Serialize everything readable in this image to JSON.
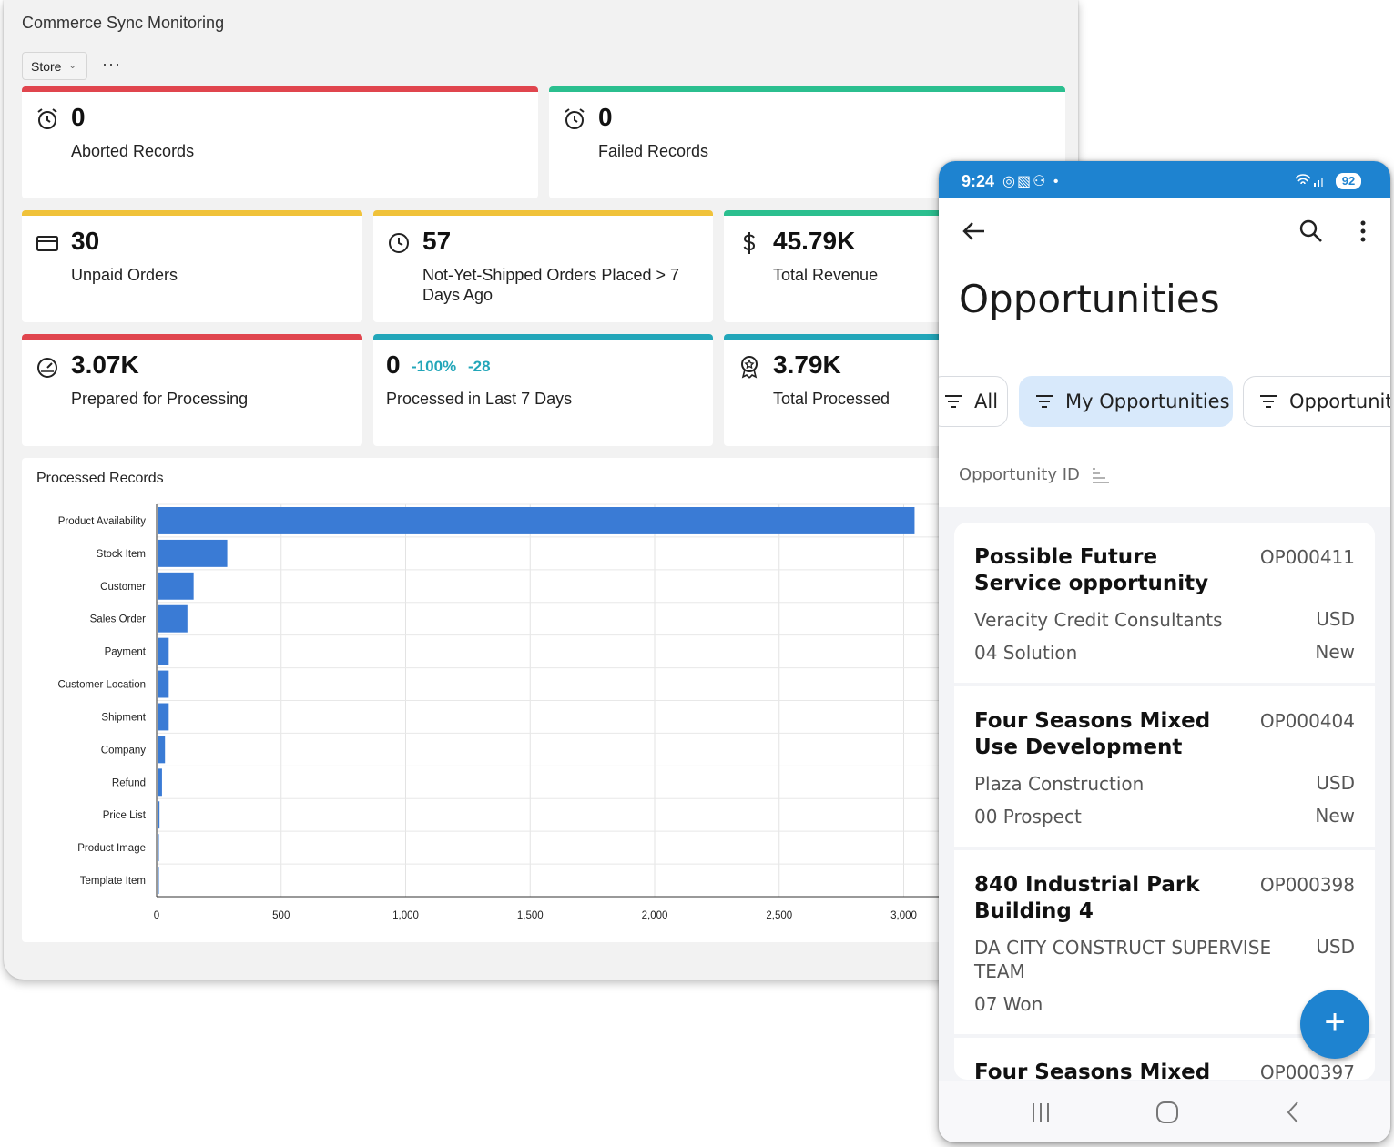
{
  "dashboard": {
    "title": "Commerce Sync Monitoring",
    "store_filter": "Store",
    "more_label": "···",
    "cards": [
      {
        "value": "0",
        "label": "Aborted Records",
        "accent": "#e0454e",
        "icon": "alarm-clock-icon"
      },
      {
        "value": "0",
        "label": "Failed Records",
        "accent": "#2bbf8f",
        "icon": "alarm-clock-icon"
      },
      {
        "value": "30",
        "label": "Unpaid Orders",
        "accent": "#f0c23a",
        "icon": "credit-card-icon"
      },
      {
        "value": "57",
        "label": "Not-Yet-Shipped Orders Placed > 7 Days Ago",
        "accent": "#f0c23a",
        "icon": "clock-icon"
      },
      {
        "value": "45.79K",
        "label": "Total Revenue",
        "accent": "#2bbf8f",
        "icon": "dollar-icon"
      },
      {
        "value": "3.07K",
        "label": "Prepared for Processing",
        "accent": "#e0454e",
        "icon": "gauge-icon"
      },
      {
        "value": "0",
        "label": "Processed in Last 7 Days",
        "accent": "#22a6b9",
        "icon": "",
        "delta_pct": "-100%",
        "delta_abs": "-28"
      },
      {
        "value": "3.79K",
        "label": "Total Processed",
        "accent": "#22a6b9",
        "icon": "award-icon"
      }
    ]
  },
  "chart_data": {
    "type": "bar",
    "orientation": "horizontal",
    "title": "Processed Records",
    "categories": [
      "Product Availability",
      "Stock Item",
      "Customer",
      "Sales Order",
      "Payment",
      "Customer Location",
      "Shipment",
      "Company",
      "Refund",
      "Price List",
      "Product Image",
      "Template Item"
    ],
    "values": [
      3040,
      280,
      145,
      120,
      45,
      45,
      45,
      30,
      18,
      8,
      4,
      3
    ],
    "xticks": [
      "0",
      "500",
      "1,000",
      "1,500",
      "2,000",
      "2,500",
      "3,000"
    ],
    "xlim": [
      0,
      3500
    ],
    "grid": true,
    "color": "#3a7bd5"
  },
  "phone": {
    "status": {
      "time": "9:24",
      "icons": "◎▧⚇ •",
      "battery": "92"
    },
    "title": "Opportunities",
    "filters": [
      {
        "label": "All",
        "active": false
      },
      {
        "label": "My Opportunities",
        "active": true
      },
      {
        "label": "Opportunity",
        "active": false
      }
    ],
    "sort_label": "Opportunity ID",
    "fab_label": "+",
    "opportunities": [
      {
        "name": "Possible Future Service opportunity",
        "id": "OP000411",
        "account": "Veracity Credit Consultants",
        "currency": "USD",
        "stage": "04 Solution",
        "status": "New"
      },
      {
        "name": "Four Seasons Mixed Use Development",
        "id": "OP000404",
        "account": "Plaza Construction",
        "currency": "USD",
        "stage": "00 Prospect",
        "status": "New"
      },
      {
        "name": "840 Industrial Park Building 4",
        "id": "OP000398",
        "account": "DA CITY CONSTRUCT SUPERVISE TEAM",
        "currency": "USD",
        "stage": "07 Won",
        "status": ""
      },
      {
        "name": "Four Seasons Mixed Use",
        "id": "OP000397",
        "account": "",
        "currency": "",
        "stage": "",
        "status": ""
      }
    ]
  }
}
